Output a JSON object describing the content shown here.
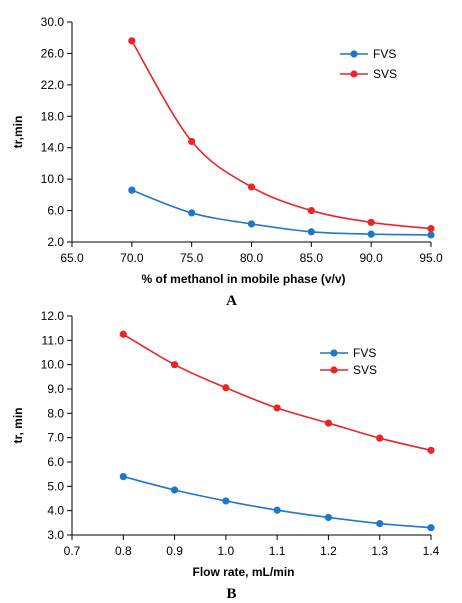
{
  "chart_data": [
    {
      "type": "line",
      "panel_label": "A",
      "xlabel": "% of methanol in mobile phase (v/v)",
      "ylabel": "tr,min",
      "xlim": [
        65.0,
        95.0
      ],
      "ylim": [
        2.0,
        30.0
      ],
      "x_ticks": [
        "65.0",
        "70.0",
        "75.0",
        "80.0",
        "85.0",
        "90.0",
        "95.0"
      ],
      "y_ticks": [
        "2.0",
        "6.0",
        "10.0",
        "14.0",
        "18.0",
        "22.0",
        "26.0",
        "30.0"
      ],
      "x": [
        70,
        75,
        80,
        85,
        90,
        95
      ],
      "series": [
        {
          "name": "FVS",
          "color": "#1f77c9",
          "values": [
            8.6,
            5.7,
            4.3,
            3.3,
            3.0,
            2.9
          ]
        },
        {
          "name": "SVS",
          "color": "#e8262a",
          "values": [
            27.6,
            14.8,
            9.0,
            6.0,
            4.5,
            3.7
          ]
        }
      ],
      "legend_position": "top-right",
      "grid": false
    },
    {
      "type": "line",
      "panel_label": "B",
      "xlabel": "Flow rate, mL/min",
      "ylabel": "tr, min",
      "xlim": [
        0.7,
        1.4
      ],
      "ylim": [
        3.0,
        12.0
      ],
      "x_ticks": [
        "0.7",
        "0.8",
        "0.9",
        "1.0",
        "1.1",
        "1.2",
        "1.3",
        "1.4"
      ],
      "y_ticks": [
        "3.0",
        "4.0",
        "5.0",
        "6.0",
        "7.0",
        "8.0",
        "9.0",
        "10.0",
        "11.0",
        "12.0"
      ],
      "x": [
        0.8,
        0.9,
        1.0,
        1.1,
        1.2,
        1.3,
        1.4
      ],
      "series": [
        {
          "name": "FVS",
          "color": "#1f77c9",
          "values": [
            5.4,
            4.85,
            4.4,
            4.02,
            3.72,
            3.47,
            3.3
          ]
        },
        {
          "name": "SVS",
          "color": "#e8262a",
          "values": [
            11.25,
            10.0,
            9.05,
            8.22,
            7.6,
            6.98,
            6.48
          ]
        }
      ],
      "legend_position": "top-right",
      "grid": false
    }
  ]
}
